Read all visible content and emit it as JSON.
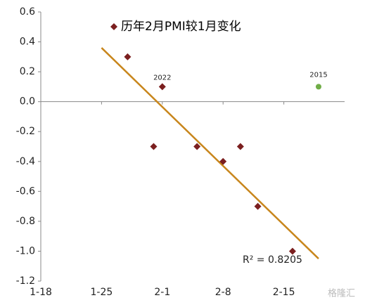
{
  "chart_data": {
    "type": "scatter",
    "series": [
      {
        "name": "历年2月PMI较1月变化",
        "color": "#7b1f1f",
        "x": [
          28,
          31,
          32,
          36,
          39,
          41,
          43,
          47
        ],
        "values": [
          0.3,
          -0.3,
          0.1,
          -0.3,
          -0.4,
          -0.3,
          -0.7,
          -1.0
        ]
      }
    ],
    "highlight": {
      "color": "#70ad47",
      "x": 50,
      "y": 0.1,
      "label": "2015"
    },
    "annotations": [
      {
        "text": "2022",
        "x": 32,
        "y": 0.1
      }
    ],
    "trendline": {
      "color": "#c8861c",
      "x": [
        25,
        50
      ],
      "y": [
        0.36,
        -1.05
      ],
      "label": "R² = 0.8205"
    },
    "xlim": [
      18,
      53
    ],
    "xticks": [
      {
        "value": 18,
        "label": "1-18"
      },
      {
        "value": 25,
        "label": "1-25"
      },
      {
        "value": 32,
        "label": "2-1"
      },
      {
        "value": 39,
        "label": "2-8"
      },
      {
        "value": 46,
        "label": "2-15"
      }
    ],
    "ylim": [
      -1.2,
      0.6
    ],
    "yticks": [
      -1.2,
      -1.0,
      -0.8,
      -0.6,
      -0.4,
      -0.2,
      0.0,
      0.2,
      0.4,
      0.6
    ],
    "grid": false,
    "watermark": "格隆汇"
  }
}
